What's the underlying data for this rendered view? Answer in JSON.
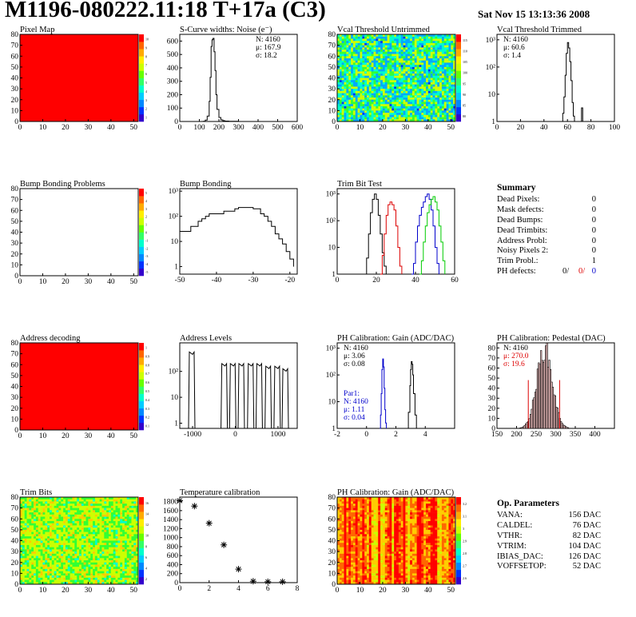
{
  "header": {
    "title": "M1196-080222.11:18 T+17a (C3)",
    "datestamp": "Sat Nov 15 13:13:36 2008"
  },
  "colors": {
    "series_black": "#000000",
    "series_red": "#dd0000",
    "series_green": "#00cc00",
    "series_blue": "#0000cc",
    "map_full": "#ff0000"
  },
  "chart_data": [
    {
      "type": "heatmap",
      "title": "Pixel Map",
      "xlim": [
        0,
        52
      ],
      "ylim": [
        0,
        80
      ],
      "xticks": [
        "0",
        "10",
        "20",
        "30",
        "40",
        "50"
      ],
      "yticks": [
        "0",
        "10",
        "20",
        "30",
        "40",
        "50",
        "60",
        "70",
        "80"
      ],
      "palette_labels": [
        "1",
        "2",
        "3",
        "4",
        "5",
        "6",
        "7",
        "8",
        "9",
        "10"
      ],
      "fill": "uniform-max"
    },
    {
      "type": "line",
      "title": "S-Curve widths: Noise (e⁻)",
      "xlim": [
        0,
        600
      ],
      "ylim": [
        0,
        650
      ],
      "xticks": [
        "0",
        "100",
        "200",
        "300",
        "400",
        "500",
        "600"
      ],
      "yticks": [
        "0",
        "100",
        "200",
        "300",
        "400",
        "500",
        "600"
      ],
      "stats": [
        {
          "text": "N: 4160",
          "color": "#000000"
        },
        {
          "text": "μ: 167.9",
          "color": "#000000"
        },
        {
          "text": "σ: 18.2",
          "color": "#000000"
        }
      ],
      "series": [
        {
          "color": "#000000",
          "x": [
            100,
            120,
            130,
            140,
            150,
            155,
            160,
            165,
            170,
            175,
            180,
            185,
            190,
            200,
            210,
            220,
            230,
            250,
            300
          ],
          "y": [
            0,
            2,
            10,
            40,
            150,
            330,
            560,
            610,
            620,
            520,
            380,
            200,
            90,
            30,
            12,
            6,
            3,
            1,
            0
          ]
        }
      ]
    },
    {
      "type": "heatmap",
      "title": "Vcal Threshold Untrimmed",
      "xlim": [
        0,
        52
      ],
      "ylim": [
        0,
        80
      ],
      "xticks": [
        "0",
        "10",
        "20",
        "30",
        "40",
        "50"
      ],
      "yticks": [
        "0",
        "10",
        "20",
        "30",
        "40",
        "50",
        "60",
        "70",
        "80"
      ],
      "palette_labels": [
        "80",
        "85",
        "90",
        "95",
        "100",
        "105",
        "110",
        "115"
      ],
      "fill": "noisy-mid"
    },
    {
      "type": "line",
      "title": "Vcal Threshold Trimmed",
      "log_y": true,
      "xlim": [
        0,
        100
      ],
      "ylim_log": [
        0,
        3.2
      ],
      "xticks": [
        "0",
        "20",
        "40",
        "60",
        "80",
        "100"
      ],
      "yticks": [
        {
          "label": "1",
          "exp": 0
        },
        {
          "label": "10",
          "exp": 1
        },
        {
          "label": "10²",
          "exp": 2
        },
        {
          "label": "10³",
          "exp": 3
        }
      ],
      "stats": [
        {
          "text": "N: 4160",
          "color": "#000000"
        },
        {
          "text": "μ: 60.6",
          "color": "#000000"
        },
        {
          "text": "σ:  1.4",
          "color": "#000000"
        }
      ],
      "series": [
        {
          "color": "#000000",
          "x": [
            55,
            56,
            57,
            58,
            59,
            60,
            61,
            62,
            63,
            64,
            65,
            66,
            72,
            73
          ],
          "y": [
            0.0,
            0.3,
            0.9,
            1.7,
            2.5,
            2.9,
            2.7,
            2.2,
            1.5,
            0.7,
            0.2,
            0.0,
            0.5,
            0.0
          ]
        }
      ]
    },
    {
      "type": "heatmap",
      "title": "Bump Bonding Problems",
      "xlim": [
        0,
        52
      ],
      "ylim": [
        0,
        80
      ],
      "xticks": [
        "0",
        "10",
        "20",
        "30",
        "40",
        "50"
      ],
      "yticks": [
        "0",
        "10",
        "20",
        "30",
        "40",
        "50",
        "60",
        "70",
        "80"
      ],
      "palette_labels": [
        "-5",
        "-4",
        "-3",
        "-2",
        "-1",
        "0",
        "1",
        "2",
        "3",
        "4",
        "5"
      ],
      "fill": "empty"
    },
    {
      "type": "line",
      "title": "Bump Bonding",
      "log_y": true,
      "xlim": [
        -50,
        -18
      ],
      "ylim_log": [
        -0.3,
        3.1
      ],
      "xticks": [
        {
          "label": "-50",
          "v": -50
        },
        {
          "label": "-40",
          "v": -40
        },
        {
          "label": "-30",
          "v": -30
        },
        {
          "label": "-20",
          "v": -20
        }
      ],
      "yticks": [
        {
          "label": "1",
          "exp": 0
        },
        {
          "label": "10",
          "exp": 1
        },
        {
          "label": "10²",
          "exp": 2
        },
        {
          "label": "10³",
          "exp": 3
        }
      ],
      "series": [
        {
          "color": "#000000",
          "x": [
            -50,
            -48,
            -47,
            -45,
            -44,
            -43,
            -42,
            -40,
            -38,
            -37,
            -35,
            -34,
            -32,
            -30,
            -28,
            -27,
            -26,
            -25,
            -24,
            -23,
            -22,
            -21,
            -20,
            -19
          ],
          "y": [
            1.4,
            1.4,
            1.6,
            1.8,
            1.9,
            2.0,
            2.1,
            2.1,
            2.2,
            2.2,
            2.3,
            2.35,
            2.35,
            2.3,
            2.1,
            2.0,
            1.8,
            1.6,
            1.3,
            1.1,
            0.9,
            0.6,
            0.3,
            0.0
          ]
        }
      ]
    },
    {
      "type": "line",
      "title": "Trim Bit Test",
      "log_y": true,
      "xlim": [
        0,
        60
      ],
      "ylim_log": [
        0,
        3.2
      ],
      "xticks": [
        {
          "label": "0",
          "v": 0
        },
        {
          "label": "20",
          "v": 20
        },
        {
          "label": "40",
          "v": 40
        },
        {
          "label": "60",
          "v": 60
        }
      ],
      "yticks": [
        {
          "label": "1",
          "exp": 0
        },
        {
          "label": "10",
          "exp": 1
        },
        {
          "label": "10²",
          "exp": 2
        },
        {
          "label": "10³",
          "exp": 3
        }
      ],
      "series": [
        {
          "color": "#000000",
          "x": [
            14,
            15,
            16,
            17,
            18,
            19,
            20,
            21,
            22,
            23,
            24,
            25
          ],
          "y": [
            0,
            0.6,
            1.5,
            2.3,
            2.8,
            3.0,
            2.8,
            2.2,
            1.5,
            0.8,
            0.3,
            0
          ]
        },
        {
          "color": "#dd0000",
          "x": [
            22,
            23,
            24,
            25,
            26,
            27,
            28,
            29,
            30,
            31,
            32,
            33
          ],
          "y": [
            0,
            0.7,
            1.5,
            2.2,
            2.6,
            2.7,
            2.6,
            2.4,
            1.8,
            1.0,
            0.3,
            0
          ]
        },
        {
          "color": "#0000cc",
          "x": [
            38,
            39,
            40,
            41,
            42,
            43,
            44,
            45,
            46,
            47,
            48,
            49,
            50,
            51,
            52
          ],
          "y": [
            0,
            0.4,
            1.2,
            1.8,
            2.2,
            2.5,
            2.7,
            2.9,
            3.0,
            2.8,
            2.4,
            1.8,
            1.0,
            0.4,
            0
          ]
        },
        {
          "color": "#00cc00",
          "x": [
            42,
            43,
            44,
            45,
            46,
            47,
            48,
            49,
            50,
            51,
            52,
            53,
            54,
            55
          ],
          "y": [
            0,
            0.5,
            1.2,
            1.8,
            2.3,
            2.6,
            2.8,
            2.9,
            2.7,
            2.4,
            1.8,
            1.2,
            0.5,
            0
          ]
        }
      ]
    },
    {
      "type": "table",
      "title": "Summary",
      "rows": [
        {
          "label": "Dead Pixels:",
          "value": "0"
        },
        {
          "label": "Mask defects:",
          "value": "0"
        },
        {
          "label": "Dead Bumps:",
          "value": "0"
        },
        {
          "label": "Dead Trimbits:",
          "value": "0"
        },
        {
          "label": "Address Probl:",
          "value": "0"
        },
        {
          "label": "Noisy Pixels 2:",
          "value": "0"
        },
        {
          "label": "Trim Probl.:",
          "value": "1"
        }
      ],
      "ph_defects": {
        "label": "PH defects:",
        "values": [
          {
            "text": "0/",
            "color": "#000000"
          },
          {
            "text": "0/",
            "color": "#dd0000"
          },
          {
            "text": "0",
            "color": "#0000cc"
          }
        ]
      }
    },
    {
      "type": "heatmap",
      "title": "Address decoding",
      "xlim": [
        0,
        52
      ],
      "ylim": [
        0,
        80
      ],
      "xticks": [
        "0",
        "10",
        "20",
        "30",
        "40",
        "50"
      ],
      "yticks": [
        "0",
        "10",
        "20",
        "30",
        "40",
        "50",
        "60",
        "70",
        "80"
      ],
      "palette_labels": [
        "0.1",
        "0.2",
        "0.3",
        "0.4",
        "0.5",
        "0.6",
        "0.7",
        "0.8",
        "0.9",
        "1"
      ],
      "fill": "uniform-max"
    },
    {
      "type": "line",
      "title": "Address Levels",
      "log_y": true,
      "xlim": [
        -1300,
        1450
      ],
      "ylim_log": [
        -0.2,
        3.1
      ],
      "xticks": [
        {
          "label": "-1000",
          "v": -1000
        },
        {
          "label": "0",
          "v": 0
        },
        {
          "label": "1000",
          "v": 1000
        }
      ],
      "yticks": [
        {
          "label": "1",
          "exp": 0
        },
        {
          "label": "10",
          "exp": 1
        },
        {
          "label": "10²",
          "exp": 2
        }
      ],
      "peaks_at": [
        -1020,
        -260,
        -60,
        140,
        360,
        560,
        770,
        980,
        1170
      ],
      "peak_height_log": [
        2.75,
        2.3,
        2.3,
        2.3,
        2.3,
        2.3,
        2.2,
        2.2,
        2.1
      ],
      "color": "#000000"
    },
    {
      "type": "line",
      "title": "PH Calibration: Gain (ADC/DAC)",
      "log_y": true,
      "xlim": [
        -2,
        6
      ],
      "ylim_log": [
        0,
        3.2
      ],
      "xticks": [
        {
          "label": "-2",
          "v": -2
        },
        {
          "label": "0",
          "v": 0
        },
        {
          "label": "2",
          "v": 2
        },
        {
          "label": "4",
          "v": 4
        }
      ],
      "yticks": [
        {
          "label": "1",
          "exp": 0
        },
        {
          "label": "10",
          "exp": 1
        },
        {
          "label": "10²",
          "exp": 2
        },
        {
          "label": "10³",
          "exp": 3
        }
      ],
      "stats": [
        {
          "text": "N: 4160",
          "color": "#000000"
        },
        {
          "text": "μ: 3.06",
          "color": "#000000"
        },
        {
          "text": "σ: 0.08",
          "color": "#000000"
        }
      ],
      "stats2": [
        {
          "text": "Par1:",
          "color": "#0000cc"
        },
        {
          "text": "N: 4160",
          "color": "#0000cc"
        },
        {
          "text": "μ: 1.11",
          "color": "#0000cc"
        },
        {
          "text": "σ: 0.04",
          "color": "#0000cc"
        }
      ],
      "series": [
        {
          "color": "#0000cc",
          "x": [
            0.9,
            0.95,
            1.0,
            1.05,
            1.1,
            1.15,
            1.2,
            1.25,
            1.3,
            1.35
          ],
          "y": [
            0,
            0.5,
            1.3,
            2.2,
            2.6,
            2.3,
            1.5,
            0.7,
            0.2,
            0
          ]
        },
        {
          "color": "#000000",
          "x": [
            2.75,
            2.85,
            2.95,
            3.0,
            3.05,
            3.1,
            3.15,
            3.2,
            3.3,
            3.4
          ],
          "y": [
            0,
            0.6,
            1.6,
            2.2,
            2.5,
            2.4,
            2.0,
            1.3,
            0.5,
            0
          ]
        }
      ]
    },
    {
      "type": "bar",
      "title": "PH Calibration: Pedestal (DAC)",
      "xlim": [
        150,
        450
      ],
      "ylim": [
        0,
        85
      ],
      "xticks": [
        {
          "label": "150",
          "v": 150
        },
        {
          "label": "200",
          "v": 200
        },
        {
          "label": "250",
          "v": 250
        },
        {
          "label": "300",
          "v": 300
        },
        {
          "label": "350",
          "v": 350
        },
        {
          "label": "400",
          "v": 400
        }
      ],
      "yticks": [
        "0",
        "10",
        "20",
        "30",
        "40",
        "50",
        "60",
        "70",
        "80"
      ],
      "stats": [
        {
          "text": "N: 4160",
          "color": "#000000"
        },
        {
          "text": "μ: 270.0",
          "color": "#dd0000"
        },
        {
          "text": "σ: 19.6",
          "color": "#dd0000"
        }
      ],
      "fill_color": "#dd0000",
      "gauss": {
        "mean": 270,
        "sigma": 19.6,
        "peak": 78
      }
    },
    {
      "type": "heatmap",
      "title": "Trim Bits",
      "xlim": [
        0,
        52
      ],
      "ylim": [
        0,
        80
      ],
      "xticks": [
        "0",
        "10",
        "20",
        "30",
        "40",
        "50"
      ],
      "yticks": [
        "0",
        "10",
        "20",
        "30",
        "40",
        "50",
        "60",
        "70",
        "80"
      ],
      "palette_labels": [
        "2",
        "4",
        "6",
        "8",
        "10",
        "12",
        "14",
        "16"
      ],
      "fill": "noisy-green"
    },
    {
      "type": "scatter",
      "title": "Temperature calibration",
      "xlim": [
        0,
        8
      ],
      "ylim": [
        0,
        1900
      ],
      "xticks": [
        {
          "label": "0",
          "v": 0
        },
        {
          "label": "2",
          "v": 2
        },
        {
          "label": "4",
          "v": 4
        },
        {
          "label": "6",
          "v": 6
        },
        {
          "label": "8",
          "v": 8
        }
      ],
      "yticks": [
        "0",
        "200",
        "400",
        "600",
        "800",
        "1000",
        "1200",
        "1400",
        "1600",
        "1800"
      ],
      "x": [
        0,
        1,
        2,
        3,
        4,
        5,
        6,
        7
      ],
      "y": [
        1820,
        1700,
        1320,
        840,
        300,
        30,
        20,
        20
      ]
    },
    {
      "type": "heatmap",
      "title": "PH Calibration: Gain (ADC/DAC)",
      "xlim": [
        0,
        52
      ],
      "ylim": [
        0,
        80
      ],
      "xticks": [
        "0",
        "10",
        "20",
        "30",
        "40",
        "50"
      ],
      "yticks": [
        "0",
        "10",
        "20",
        "30",
        "40",
        "50",
        "60",
        "70",
        "80"
      ],
      "palette_labels": [
        "2.6",
        "2.7",
        "2.8",
        "2.9",
        "3",
        "3.1",
        "3.2"
      ],
      "fill": "orange-columns"
    },
    {
      "type": "table",
      "title": "Op. Parameters",
      "rows": [
        {
          "label": "VANA:",
          "value": "156 DAC"
        },
        {
          "label": "CALDEL:",
          "value": "76 DAC"
        },
        {
          "label": "VTHR:",
          "value": "82 DAC"
        },
        {
          "label": "VTRIM:",
          "value": "104 DAC"
        },
        {
          "label": "IBIAS_DAC:",
          "value": "126 DAC"
        },
        {
          "label": "VOFFSETOP:",
          "value": "52 DAC"
        }
      ]
    }
  ]
}
